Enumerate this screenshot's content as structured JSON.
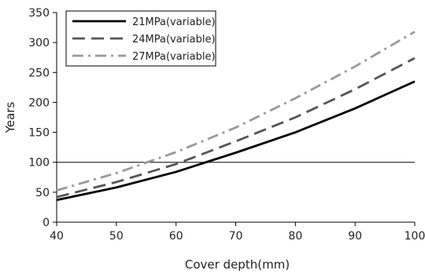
{
  "chart_data": {
    "type": "line",
    "title": "",
    "xlabel": "Cover depth(mm)",
    "ylabel": "Years",
    "xlim": [
      40,
      100
    ],
    "ylim": [
      0,
      350
    ],
    "xticks": [
      40,
      50,
      60,
      70,
      80,
      90,
      100
    ],
    "yticks": [
      0,
      50,
      100,
      150,
      200,
      250,
      300,
      350
    ],
    "grid": false,
    "legend_position": "top-left",
    "reference_line": {
      "y": 100,
      "color": "#000000"
    },
    "series": [
      {
        "name": "21MPa(variable)",
        "color": "#000000",
        "dash": "solid",
        "x": [
          40,
          50,
          60,
          70,
          80,
          90,
          100
        ],
        "y": [
          37,
          58,
          84,
          116,
          150,
          190,
          235
        ]
      },
      {
        "name": "24MPa(variable)",
        "color": "#555555",
        "dash": "dash",
        "x": [
          40,
          50,
          60,
          70,
          80,
          90,
          100
        ],
        "y": [
          42,
          67,
          97,
          135,
          175,
          222,
          274
        ]
      },
      {
        "name": "27MPa(variable)",
        "color": "#999999",
        "dash": "dash-dot",
        "x": [
          40,
          50,
          60,
          70,
          80,
          90,
          100
        ],
        "y": [
          53,
          82,
          117,
          158,
          207,
          260,
          318
        ]
      }
    ]
  }
}
